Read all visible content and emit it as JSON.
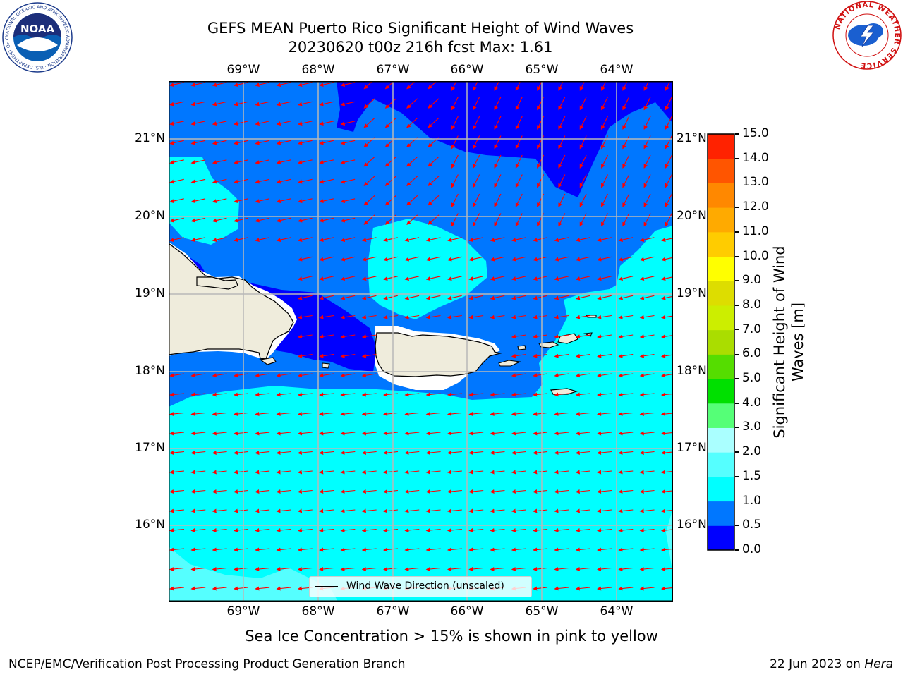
{
  "title": {
    "line1": "GEFS MEAN Puerto Rico Significant Height of Wind Waves",
    "line2": "20230620 t00z 216h fcst   Max: 1.61"
  },
  "map": {
    "lon_labels": [
      "69°W",
      "68°W",
      "67°W",
      "66°W",
      "65°W",
      "64°W"
    ],
    "lat_labels": [
      "21°N",
      "20°N",
      "19°N",
      "18°N",
      "17°N",
      "16°N"
    ],
    "legend_label": "Wind Wave Direction (unscaled)",
    "land_color": "#efecdc",
    "arrow_color": "#ff0000"
  },
  "colorbar": {
    "label_line1": "Significant Height of Wind",
    "label_line2": "Waves [m]",
    "ticks": [
      "15.0",
      "14.0",
      "13.0",
      "12.0",
      "11.0",
      "10.0",
      "9.0",
      "8.0",
      "7.0",
      "6.0",
      "5.0",
      "4.0",
      "3.0",
      "2.0",
      "1.5",
      "1.0",
      "0.5",
      "0.0"
    ],
    "colors": [
      "#0000ff",
      "#0077ff",
      "#00ffff",
      "#55ffff",
      "#aaffff",
      "#55ff77",
      "#00e000",
      "#55dd00",
      "#aadd00",
      "#ccee00",
      "#dddd00",
      "#ffff00",
      "#ffcc00",
      "#ffaa00",
      "#ff8800",
      "#ff5500",
      "#ff2200",
      "#ff0000"
    ]
  },
  "caption": "Sea Ice Concentration > 15% is shown in pink to yellow",
  "footer": {
    "left": "NCEP/EMC/Verification Post Processing Product Generation Branch",
    "right_prefix": "22 Jun 2023 on ",
    "right_host": "Hera"
  },
  "logos": {
    "left_text": "NOAA",
    "left_ring_text": "NATIONAL OCEANIC AND ATMOSPHERIC ADMINISTRATION · U.S. DEPARTMENT OF COMMERCE",
    "right_ring_text": "NATIONAL WEATHER SERVICE"
  }
}
